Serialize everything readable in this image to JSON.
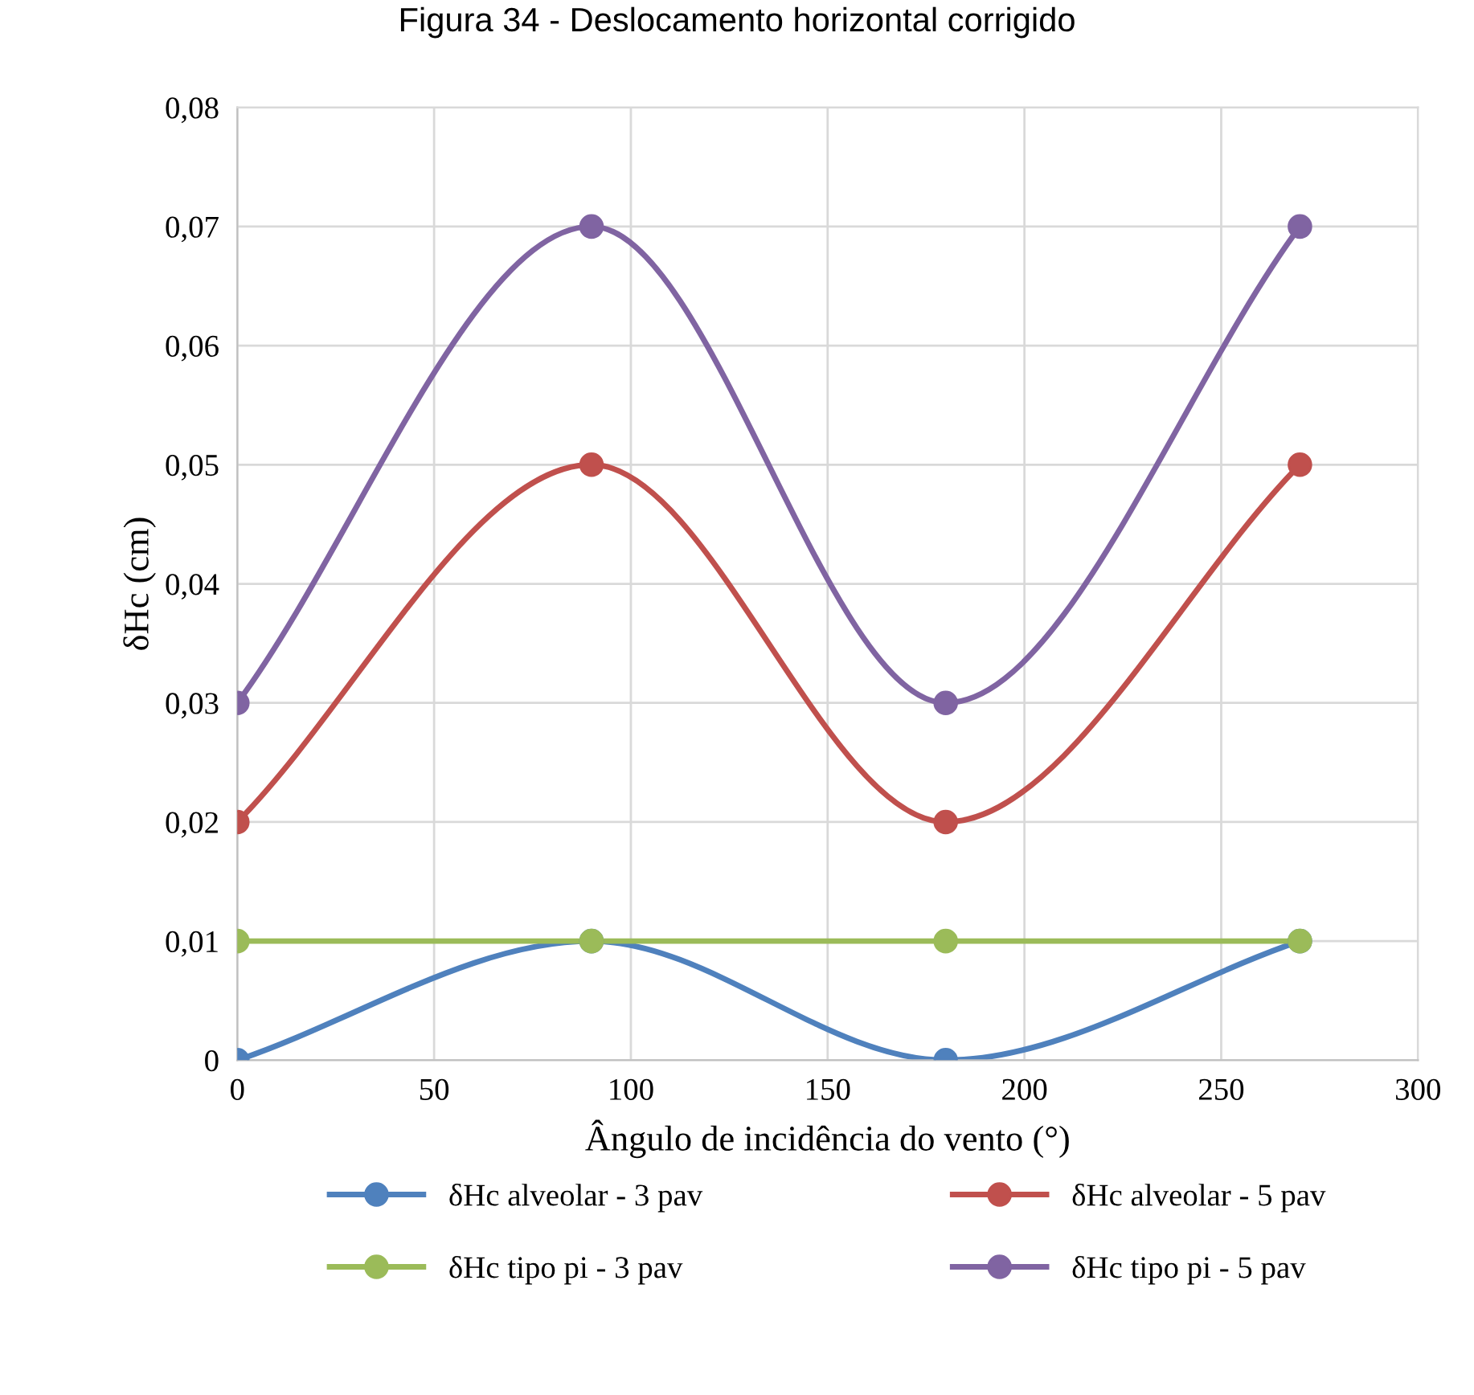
{
  "chart_data": {
    "type": "line",
    "title": "Figura 34 - Deslocamento horizontal corrigido",
    "xlabel": "Ângulo de incidência do vento (°)",
    "ylabel": "δHc (cm)",
    "x": [
      0,
      90,
      180,
      270
    ],
    "series": [
      {
        "name": "δHc alveolar - 3 pav",
        "color": "#4f81bd",
        "values": [
          0,
          0.01,
          0,
          0.01
        ]
      },
      {
        "name": "δHc alveolar - 5 pav",
        "color": "#c0504d",
        "values": [
          0.02,
          0.05,
          0.02,
          0.05
        ]
      },
      {
        "name": "δHc tipo pi - 3 pav",
        "color": "#9bbb59",
        "values": [
          0.01,
          0.01,
          0.01,
          0.01
        ]
      },
      {
        "name": "δHc tipo pi - 5 pav",
        "color": "#8064a2",
        "values": [
          0.03,
          0.07,
          0.03,
          0.07
        ]
      }
    ],
    "xlim": [
      0,
      300
    ],
    "xticks": [
      0,
      50,
      100,
      150,
      200,
      250,
      300
    ],
    "ylim": [
      0,
      0.08
    ],
    "yticks": [
      0,
      {
        "value": 0.01,
        "label": "0,01"
      },
      {
        "value": 0.02,
        "label": "0,02"
      },
      {
        "value": 0.03,
        "label": "0,03"
      },
      {
        "value": 0.04,
        "label": "0,04"
      },
      {
        "value": 0.05,
        "label": "0,05"
      },
      {
        "value": 0.06,
        "label": "0,06"
      },
      {
        "value": 0.07,
        "label": "0,07"
      },
      {
        "value": 0.08,
        "label": "0,08"
      }
    ],
    "grid": true,
    "legend": "bottom",
    "marker": "circle",
    "line_style": "solid"
  }
}
